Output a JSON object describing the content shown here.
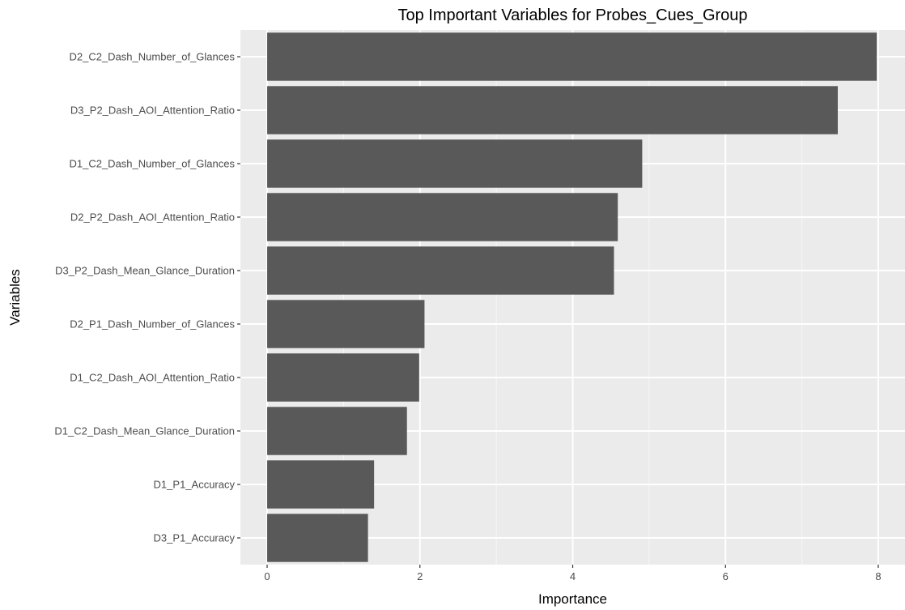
{
  "chart_data": {
    "type": "bar",
    "orientation": "horizontal",
    "title": "Top Important Variables for Probes_Cues_Group",
    "xlabel": "Importance",
    "ylabel": "Variables",
    "categories": [
      "D2_C2_Dash_Number_of_Glances",
      "D3_P2_Dash_AOI_Attention_Ratio",
      "D1_C2_Dash_Number_of_Glances",
      "D2_P2_Dash_AOI_Attention_Ratio",
      "D3_P2_Dash_Mean_Glance_Duration",
      "D2_P1_Dash_Number_of_Glances",
      "D1_C2_Dash_AOI_Attention_Ratio",
      "D1_C2_Dash_Mean_Glance_Duration",
      "D1_P1_Accuracy",
      "D3_P1_Accuracy"
    ],
    "values": [
      7.98,
      7.47,
      4.91,
      4.59,
      4.54,
      2.06,
      1.99,
      1.83,
      1.4,
      1.32
    ],
    "xlim": [
      -0.35,
      8.35
    ],
    "xticks": [
      0,
      2,
      4,
      6,
      8
    ],
    "grid": true,
    "legend": "none",
    "colors": {
      "bar": "#595959",
      "panel_background": "#ebebeb",
      "grid_major": "#ffffff",
      "grid_minor": "#f5f5f5",
      "tick": "#333333",
      "tick_label": "#4d4d4d"
    }
  }
}
